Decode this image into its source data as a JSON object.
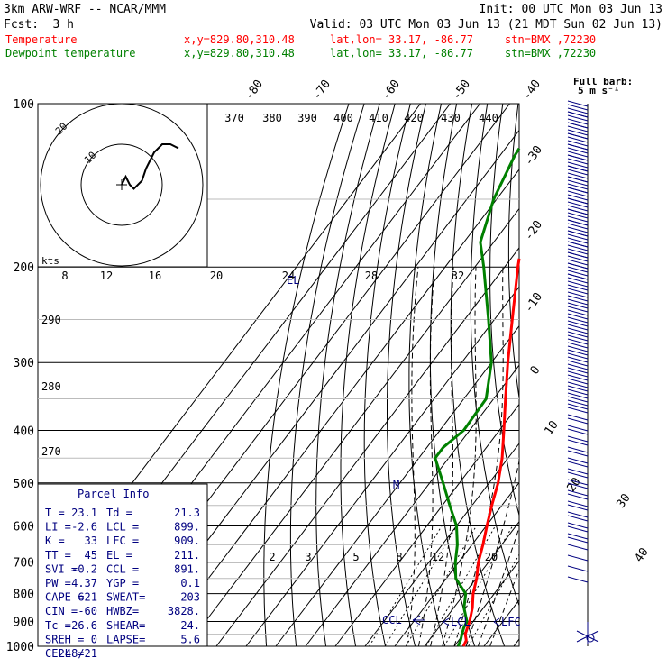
{
  "header": {
    "model": "3km ARW-WRF -- NCAR/MMM",
    "init": "Init: 00 UTC Mon 03 Jun 13",
    "fcst_label": "Fcst:",
    "fcst_value": "3 h",
    "valid": "Valid: 03 UTC Mon 03 Jun 13 (21 MDT Sun 02 Jun 13)",
    "legend": [
      {
        "name": "Temperature",
        "xy": "x,y=829.80,310.48",
        "latlon": "lat,lon= 33.17, -86.77",
        "stn": "stn=BMX ,72230",
        "color": "#ff0000"
      },
      {
        "name": "Dewpoint temperature",
        "xy": "x,y=829.80,310.48",
        "latlon": "lat,lon= 33.17, -86.77",
        "stn": "stn=BMX ,72230",
        "color": "#008000"
      }
    ],
    "barb_label_1": "Full barb:",
    "barb_label_2": "5 m s⁻¹"
  },
  "parcel_info": {
    "title": "Parcel Info",
    "rows": [
      [
        "T  =",
        "23.1",
        "Td =",
        "21.3"
      ],
      [
        "LI =",
        "-2.6",
        "LCL =",
        "899."
      ],
      [
        "K  =",
        "33",
        "LFC =",
        "909."
      ],
      [
        "TT =",
        "45",
        "EL  =",
        "211."
      ],
      [
        "SVI =",
        "-0.2",
        "CCL =",
        "891."
      ],
      [
        "PW =",
        "4.37",
        "YGP =",
        "0.1"
      ],
      [
        "CAPE =",
        "621",
        "SWEAT=",
        "203"
      ],
      [
        "CIN =",
        "-60",
        "HWBZ=",
        "3828."
      ],
      [
        "Tc =",
        "26.6",
        "SHEAR=",
        "24."
      ],
      [
        "SREH =",
        "0",
        "LAPSE=",
        "5.6"
      ],
      [
        "CELL =",
        "248/21",
        "",
        ""
      ]
    ]
  },
  "hodograph": {
    "units_label": "kts",
    "ring_labels": [
      "10",
      "20"
    ],
    "points_kts": [
      [
        0,
        0
      ],
      [
        1,
        2
      ],
      [
        2,
        0
      ],
      [
        3,
        -1
      ],
      [
        5,
        1
      ],
      [
        6,
        4
      ],
      [
        7,
        6
      ],
      [
        8,
        8
      ],
      [
        10,
        10
      ],
      [
        12,
        10
      ],
      [
        14,
        9
      ]
    ]
  },
  "colors": {
    "temperature": "#ff0000",
    "dewpoint": "#008000",
    "isotherm": "#000000",
    "parcel_labels": "#000080",
    "barbs": "#000080"
  },
  "chart_data": {
    "type": "line",
    "subtype": "skew-T log-p sounding",
    "y_axis": "pressure (hPa), log scale",
    "pressure_ticks": [
      100,
      200,
      300,
      400,
      500,
      600,
      700,
      800,
      900,
      1000
    ],
    "isotherm_labels": [
      "-80",
      "-70",
      "-60",
      "-50",
      "-40",
      "-30",
      "-20",
      "-10",
      "0",
      "10",
      "20",
      "30",
      "40"
    ],
    "theta_labels": [
      "370",
      "380",
      "390",
      "400",
      "410",
      "420",
      "430",
      "440"
    ],
    "dry_adiabat_labels": [
      "290",
      "280",
      "270"
    ],
    "mixing_ratio_upper": [
      "8",
      "12",
      "16",
      "20",
      "24",
      "28",
      "32"
    ],
    "mixing_ratio_lower": [
      "2",
      "3",
      "5",
      "8",
      "12",
      "20"
    ],
    "level_labels": [
      "EL",
      "M",
      "CCL",
      "LCL",
      "LFC"
    ],
    "series": [
      {
        "name": "Temperature",
        "color": "#ff0000",
        "points": [
          [
            1000,
            23.1
          ],
          [
            975,
            22.5
          ],
          [
            950,
            20.6
          ],
          [
            925,
            19.7
          ],
          [
            900,
            18.8
          ],
          [
            850,
            16.3
          ],
          [
            800,
            12.9
          ],
          [
            750,
            10.2
          ],
          [
            700,
            6.6
          ],
          [
            650,
            3.7
          ],
          [
            600,
            0.2
          ],
          [
            550,
            -3.4
          ],
          [
            500,
            -7.0
          ],
          [
            450,
            -12.0
          ],
          [
            400,
            -18.5
          ],
          [
            350,
            -26.0
          ],
          [
            300,
            -34.5
          ],
          [
            250,
            -44.0
          ],
          [
            200,
            -55.5
          ],
          [
            175,
            -62.0
          ],
          [
            150,
            -68.5
          ],
          [
            125,
            -71.0
          ],
          [
            100,
            -71.5
          ]
        ]
      },
      {
        "name": "Dewpoint temperature",
        "color": "#008000",
        "points": [
          [
            1000,
            21.3
          ],
          [
            975,
            20.6
          ],
          [
            950,
            19.5
          ],
          [
            925,
            18.5
          ],
          [
            900,
            17.9
          ],
          [
            850,
            13.5
          ],
          [
            800,
            10.4
          ],
          [
            750,
            3.2
          ],
          [
            700,
            -1.1
          ],
          [
            650,
            -4.9
          ],
          [
            600,
            -10.0
          ],
          [
            550,
            -17.5
          ],
          [
            500,
            -25.5
          ],
          [
            450,
            -34.5
          ],
          [
            430,
            -34.5
          ],
          [
            400,
            -32.0
          ],
          [
            350,
            -32.5
          ],
          [
            300,
            -40.0
          ],
          [
            250,
            -52.0
          ],
          [
            200,
            -67.0
          ],
          [
            180,
            -74.5
          ],
          [
            150,
            -81.0
          ],
          [
            125,
            -85.0
          ],
          [
            100,
            -87.5
          ]
        ]
      }
    ]
  }
}
